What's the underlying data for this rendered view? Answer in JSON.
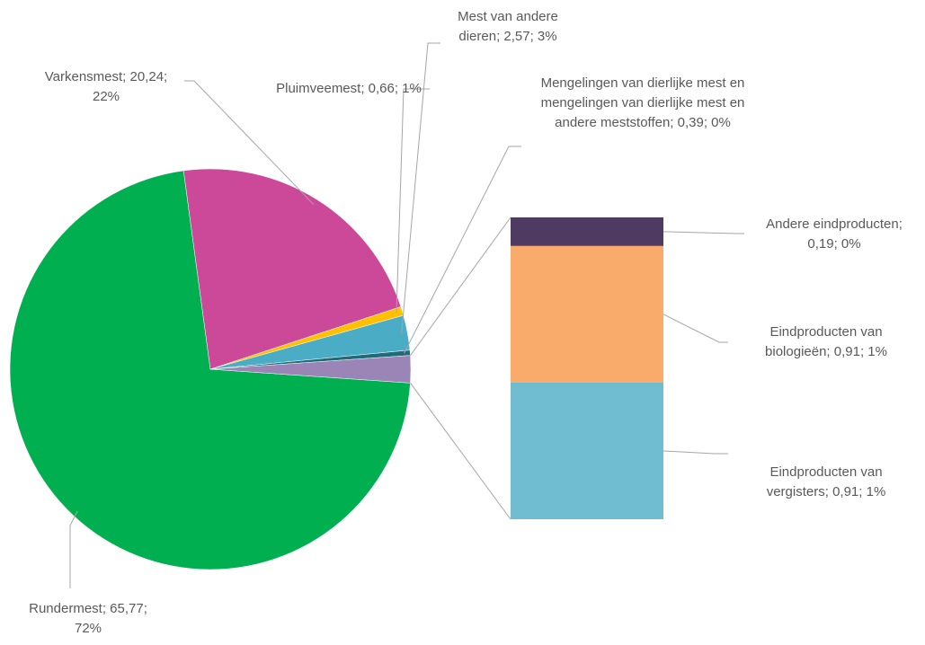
{
  "chart_data": {
    "type": "pie",
    "subtype": "bar-of-pie",
    "pie": {
      "slices": [
        {
          "label": "Rundermest",
          "value": 65.77,
          "percent": "72%",
          "color": "#00b050",
          "label_lines": [
            "Rundermest; 65,77;",
            "72%"
          ]
        },
        {
          "label": "Varkensmest",
          "value": 20.24,
          "percent": "22%",
          "color": "#cc4899",
          "label_lines": [
            "Varkensmest; 20,24;",
            "22%"
          ]
        },
        {
          "label": "Pluimveemest",
          "value": 0.66,
          "percent": "1%",
          "color": "#ffc000",
          "label_lines": [
            "Pluimveemest; 0,66; 1%"
          ]
        },
        {
          "label": "Mest van andere dieren",
          "value": 2.57,
          "percent": "3%",
          "color": "#4bacc6",
          "label_lines": [
            "Mest van andere",
            "dieren; 2,57; 3%"
          ]
        },
        {
          "label": "Mengelingen van dierlijke mest en mengelingen van dierlijke mest en andere meststoffen",
          "value": 0.39,
          "percent": "0%",
          "color": "#1f6b7a",
          "label_lines": [
            "Mengelingen van dierlijke mest en",
            "mengelingen van dierlijke mest en",
            "andere meststoffen; 0,39; 0%"
          ]
        },
        {
          "label": "Overige",
          "value": 2.01,
          "color": "#9b85b7",
          "is_other": true
        }
      ]
    },
    "bar": {
      "segments": [
        {
          "label": "Eindproducten van vergisters",
          "value": 0.91,
          "percent": "1%",
          "color": "#70bcd1",
          "label_lines": [
            "Eindproducten van",
            "vergisters; 0,91; 1%"
          ]
        },
        {
          "label": "Eindproducten van biologieën",
          "value": 0.91,
          "percent": "1%",
          "color": "#f8ab6b",
          "label_lines": [
            "Eindproducten van",
            "biologieën; 0,91; 1%"
          ]
        },
        {
          "label": "Andere eindproducten",
          "value": 0.19,
          "percent": "0%",
          "color": "#4f3a62",
          "label_lines": [
            "Andere eindproducten;",
            "0,19; 0%"
          ]
        }
      ]
    }
  }
}
